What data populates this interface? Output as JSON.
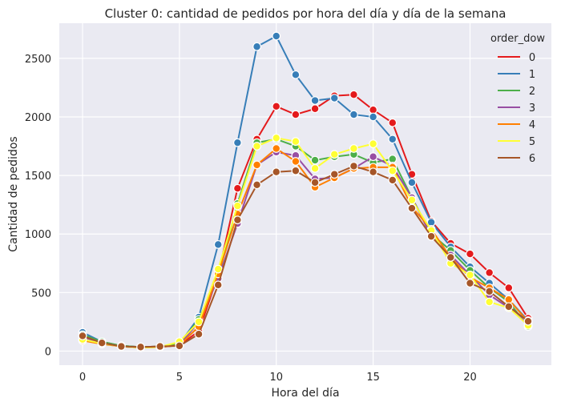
{
  "chart_data": {
    "type": "line",
    "title": "Cluster 0: cantidad de pedidos por hora del día y día de la semana",
    "xlabel": "Hora del día",
    "ylabel": "Cantidad de pedidos",
    "xlim": [
      -1.2,
      24.2
    ],
    "ylim": [
      -120,
      2800
    ],
    "xticks": [
      0,
      5,
      10,
      15,
      20
    ],
    "yticks": [
      0,
      500,
      1000,
      1500,
      2000,
      2500
    ],
    "grid": true,
    "background": "#eaeaf2",
    "legend": {
      "title": "order_dow",
      "placement": "top-right"
    },
    "x": [
      0,
      1,
      2,
      3,
      4,
      5,
      6,
      7,
      8,
      9,
      10,
      11,
      12,
      13,
      14,
      15,
      16,
      17,
      18,
      19,
      20,
      21,
      22,
      23
    ],
    "series": [
      {
        "name": "0",
        "color": "#e41a1c",
        "values": [
          130,
          75,
          45,
          35,
          40,
          50,
          170,
          650,
          1390,
          1810,
          2090,
          2020,
          2070,
          2180,
          2190,
          2060,
          1950,
          1510,
          1110,
          920,
          830,
          670,
          540,
          280
        ]
      },
      {
        "name": "1",
        "color": "#377eb8",
        "values": [
          160,
          80,
          45,
          35,
          40,
          60,
          290,
          910,
          1780,
          2600,
          2690,
          2360,
          2140,
          2160,
          2020,
          2000,
          1810,
          1440,
          1100,
          890,
          720,
          580,
          440,
          260
        ]
      },
      {
        "name": "2",
        "color": "#4daf4a",
        "values": [
          140,
          80,
          45,
          35,
          40,
          60,
          270,
          630,
          1260,
          1780,
          1810,
          1750,
          1630,
          1660,
          1680,
          1610,
          1640,
          1310,
          1000,
          860,
          690,
          540,
          420,
          210
        ]
      },
      {
        "name": "3",
        "color": "#984ea3",
        "values": [
          120,
          70,
          40,
          30,
          35,
          50,
          250,
          620,
          1090,
          1590,
          1700,
          1670,
          1470,
          1480,
          1560,
          1660,
          1580,
          1310,
          980,
          820,
          650,
          480,
          370,
          230
        ]
      },
      {
        "name": "4",
        "color": "#ff7f00",
        "values": [
          90,
          60,
          40,
          30,
          35,
          50,
          210,
          660,
          1170,
          1590,
          1730,
          1620,
          1400,
          1480,
          1560,
          1570,
          1570,
          1230,
          1040,
          800,
          630,
          540,
          440,
          250
        ]
      },
      {
        "name": "5",
        "color": "#ffff33",
        "values": [
          100,
          65,
          40,
          30,
          35,
          80,
          250,
          700,
          1240,
          1750,
          1820,
          1790,
          1560,
          1680,
          1730,
          1770,
          1540,
          1290,
          1030,
          750,
          650,
          420,
          370,
          220
        ]
      },
      {
        "name": "6",
        "color": "#a65628",
        "values": [
          130,
          70,
          40,
          35,
          40,
          45,
          145,
          565,
          1120,
          1420,
          1530,
          1540,
          1440,
          1510,
          1580,
          1530,
          1460,
          1220,
          980,
          800,
          580,
          510,
          380,
          255
        ]
      }
    ]
  }
}
